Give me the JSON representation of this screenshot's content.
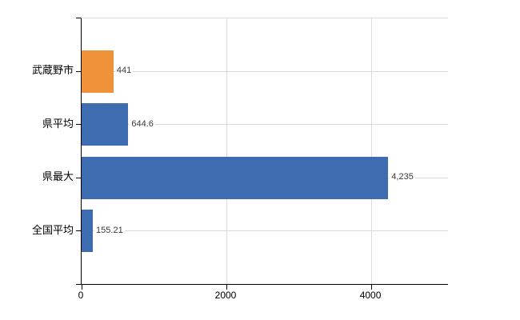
{
  "chart_data": {
    "type": "bar",
    "orientation": "horizontal",
    "title": "",
    "xlabel": "",
    "ylabel": "",
    "categories": [
      "武蔵野市",
      "県平均",
      "県最大",
      "全国平均"
    ],
    "values": [
      441,
      644.6,
      4235,
      155.21
    ],
    "value_labels": [
      "441",
      "644.6",
      "4,235",
      "155.21"
    ],
    "bar_colors": [
      "#f0923a",
      "#3d6db0",
      "#3d6db0",
      "#3d6db0"
    ],
    "xlim": [
      0,
      5060
    ],
    "x_ticks": [
      0,
      2000,
      4000
    ],
    "x_tick_labels": [
      "0",
      "2000",
      "4000"
    ],
    "legend": "none",
    "grid": {
      "vertical_gridlines_at_ticks": true,
      "category_leader_lines": true
    }
  },
  "colors": {
    "background": "#ffffff",
    "axis": "#000000",
    "gridline": "#dddddd",
    "leader_line": "#d5dcd5",
    "plot_top_border": "#dcdcdc",
    "value_text": "#3a3a3a",
    "category_text": "#000000",
    "tick_text": "#000000",
    "bar_blue": "#3d6db0",
    "bar_orange": "#f0923a"
  }
}
